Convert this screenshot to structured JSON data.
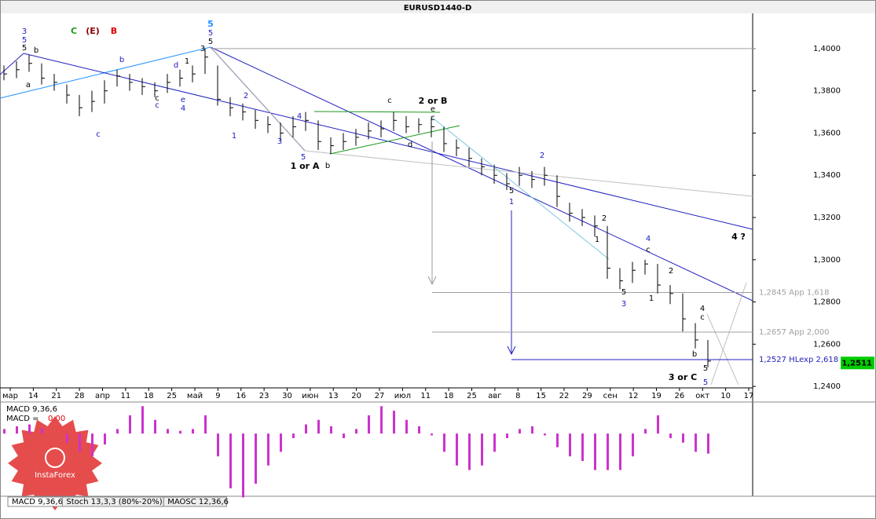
{
  "chart_data": {
    "type": "ohlc",
    "title": "EURUSD1440-D",
    "ylim": [
      1.2393,
      1.4167
    ],
    "yticks": [
      {
        "value": 1.24,
        "label": "1,2400"
      },
      {
        "value": 1.26,
        "label": "1,2600"
      },
      {
        "value": 1.28,
        "label": "1,2800"
      },
      {
        "value": 1.3,
        "label": "1,3000"
      },
      {
        "value": 1.32,
        "label": "1,3200"
      },
      {
        "value": 1.34,
        "label": "1,3400"
      },
      {
        "value": 1.36,
        "label": "1,3600"
      },
      {
        "value": 1.38,
        "label": "1,3800"
      },
      {
        "value": 1.4,
        "label": "1,4000"
      }
    ],
    "xticks": [
      "мар",
      "14",
      "21",
      "28",
      "апр",
      "11",
      "18",
      "25",
      "май",
      "9",
      "16",
      "23",
      "30",
      "июн",
      "13",
      "20",
      "27",
      "июл",
      "11",
      "18",
      "25",
      "авг",
      "8",
      "15",
      "22",
      "29",
      "сен",
      "12",
      "19",
      "26",
      "окт",
      "10",
      "17"
    ],
    "color": "#000000",
    "high": [
      1.392,
      1.394,
      1.397,
      1.393,
      1.388,
      1.383,
      1.378,
      1.38,
      1.385,
      1.39,
      1.388,
      1.386,
      1.384,
      1.388,
      1.39,
      1.392,
      1.4,
      1.392,
      1.377,
      1.374,
      1.371,
      1.368,
      1.365,
      1.368,
      1.37,
      1.366,
      1.358,
      1.36,
      1.362,
      1.365,
      1.366,
      1.37,
      1.368,
      1.367,
      1.367,
      1.363,
      1.357,
      1.353,
      1.348,
      1.345,
      1.341,
      1.344,
      1.342,
      1.344,
      1.34,
      1.327,
      1.324,
      1.321,
      1.316,
      1.296,
      1.299,
      1.3,
      1.298,
      1.288,
      1.284,
      1.27,
      1.262
    ],
    "low": [
      1.385,
      1.386,
      1.389,
      1.383,
      1.38,
      1.374,
      1.368,
      1.37,
      1.374,
      1.382,
      1.38,
      1.378,
      1.377,
      1.379,
      1.382,
      1.384,
      1.388,
      1.373,
      1.368,
      1.366,
      1.362,
      1.36,
      1.356,
      1.358,
      1.361,
      1.352,
      1.35,
      1.352,
      1.354,
      1.357,
      1.358,
      1.361,
      1.36,
      1.36,
      1.358,
      1.351,
      1.349,
      1.344,
      1.34,
      1.336,
      1.333,
      1.335,
      1.334,
      1.335,
      1.325,
      1.318,
      1.316,
      1.311,
      1.291,
      1.286,
      1.289,
      1.293,
      1.284,
      1.279,
      1.266,
      1.258,
      1.249
    ],
    "close": [
      1.388,
      1.39,
      1.393,
      1.386,
      1.384,
      1.378,
      1.372,
      1.375,
      1.38,
      1.387,
      1.384,
      1.382,
      1.38,
      1.384,
      1.386,
      1.388,
      1.396,
      1.376,
      1.372,
      1.37,
      1.366,
      1.364,
      1.36,
      1.363,
      1.366,
      1.356,
      1.354,
      1.356,
      1.358,
      1.361,
      1.362,
      1.366,
      1.363,
      1.364,
      1.363,
      1.355,
      1.353,
      1.348,
      1.344,
      1.34,
      1.336,
      1.34,
      1.338,
      1.34,
      1.33,
      1.322,
      1.32,
      1.316,
      1.296,
      1.29,
      1.295,
      1.298,
      1.288,
      1.284,
      1.272,
      1.262,
      1.252
    ],
    "last_price": {
      "value": 1.2511,
      "label": "1,2511",
      "color": "#00cc00"
    },
    "levels": [
      {
        "value": 1.2845,
        "label": "1,2845 App 1,618",
        "color": "#a0a0a0"
      },
      {
        "value": 1.2657,
        "label": "1,2657 App 2,000",
        "color": "#a0a0a0"
      },
      {
        "value": 1.2527,
        "label": "1,2527 HLexp 2,618",
        "color": "#2020c0"
      }
    ],
    "annotations": [
      {
        "text": "3",
        "color": "#2020c0"
      },
      {
        "text": "5",
        "color": "#2020c0"
      },
      {
        "text": "5",
        "color": "#000000"
      },
      {
        "text": "C",
        "color": "#1a9a1a"
      },
      {
        "text": "(E)",
        "color": "#8b0000"
      },
      {
        "text": "B",
        "color": "#e00000"
      },
      {
        "text": "5",
        "color": "#1e90ff"
      },
      {
        "text": "5",
        "color": "#2020c0"
      },
      {
        "text": "5",
        "color": "#000000"
      },
      {
        "text": "b",
        "color": "#000000"
      },
      {
        "text": "b",
        "color": "#2020c0"
      },
      {
        "text": "d",
        "color": "#2020c0"
      },
      {
        "text": "1",
        "color": "#000000"
      },
      {
        "text": "3",
        "color": "#000000"
      },
      {
        "text": "c",
        "color": "#2020c0"
      },
      {
        "text": "a",
        "color": "#000000"
      },
      {
        "text": "e",
        "color": "#2020c0"
      },
      {
        "text": "4",
        "color": "#2020c0"
      },
      {
        "text": "c",
        "color": "#000000"
      },
      {
        "text": "c",
        "color": "#2020c0"
      },
      {
        "text": "2",
        "color": "#2020c0"
      },
      {
        "text": "1",
        "color": "#2020c0"
      },
      {
        "text": "3",
        "color": "#2020c0"
      },
      {
        "text": "4",
        "color": "#2020c0"
      },
      {
        "text": "5",
        "color": "#2020c0"
      },
      {
        "text": "1 or A",
        "color": "#000000"
      },
      {
        "text": "b",
        "color": "#000000"
      },
      {
        "text": "c",
        "color": "#000000"
      },
      {
        "text": "2 or B",
        "color": "#000000"
      },
      {
        "text": "e",
        "color": "#000000"
      },
      {
        "text": "c",
        "color": "#000000"
      },
      {
        "text": "d",
        "color": "#000000"
      },
      {
        "text": "2",
        "color": "#2020c0"
      },
      {
        "text": "1",
        "color": "#2020c0"
      },
      {
        "text": "5",
        "color": "#000000"
      },
      {
        "text": "4",
        "color": "#2020c0"
      },
      {
        "text": "c",
        "color": "#000000"
      },
      {
        "text": "3",
        "color": "#2020c0"
      },
      {
        "text": "5",
        "color": "#000000"
      },
      {
        "text": "4",
        "color": "#000000"
      },
      {
        "text": "c",
        "color": "#000000"
      },
      {
        "text": "5",
        "color": "#000000"
      },
      {
        "text": "5",
        "color": "#2020c0"
      },
      {
        "text": "3 or C",
        "color": "#000000"
      },
      {
        "text": "4 ?",
        "color": "#000000"
      },
      {
        "text": "b",
        "color": "#000000"
      },
      {
        "text": "2",
        "color": "#000000"
      },
      {
        "text": "1",
        "color": "#000000"
      },
      {
        "text": "2",
        "color": "#000000"
      },
      {
        "text": "1",
        "color": "#000000"
      }
    ],
    "macd": {
      "label": "MACD 9,36,6",
      "readout_name": "MACD = ",
      "readout_value": "0,00",
      "color": "#cc33cc",
      "ylim": [
        -0.0067,
        0.0032
      ],
      "values": [
        0.0005,
        0.0008,
        0.001,
        0.0006,
        0.0,
        -0.001,
        -0.002,
        -0.0025,
        -0.0012,
        0.0005,
        0.002,
        0.003,
        0.0015,
        0.0005,
        0.0003,
        0.0005,
        0.002,
        -0.0025,
        -0.006,
        -0.007,
        -0.0055,
        -0.0035,
        -0.002,
        -0.0005,
        0.001,
        0.0015,
        0.0008,
        -0.0005,
        0.0005,
        0.002,
        0.003,
        0.0025,
        0.0015,
        0.0008,
        -0.0002,
        -0.002,
        -0.0035,
        -0.004,
        -0.0035,
        -0.002,
        -0.0005,
        0.0005,
        0.0008,
        -0.0002,
        -0.0015,
        -0.0025,
        -0.003,
        -0.004,
        -0.004,
        -0.004,
        -0.0025,
        0.0005,
        0.002,
        -0.0005,
        -0.001,
        -0.002,
        -0.0022
      ]
    },
    "tabs": [
      "MACD 9,36,6",
      "Stoch 13,3,3 (80%-20%)",
      "MAOSC 12,36,6"
    ],
    "logo": "InstaForex"
  }
}
